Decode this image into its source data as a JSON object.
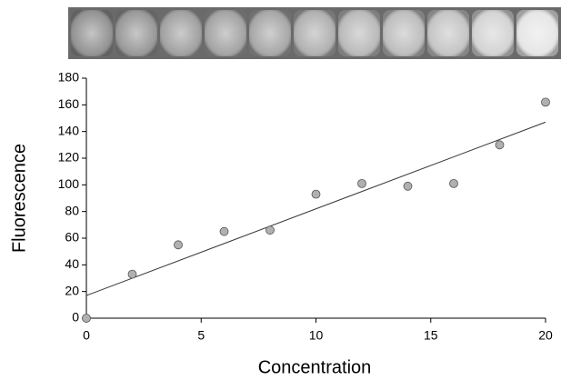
{
  "chart_data": {
    "type": "scatter",
    "x_label": "Concentration",
    "y_label": "Fluorescence",
    "x": [
      0,
      2,
      4,
      6,
      8,
      10,
      12,
      14,
      16,
      18,
      20
    ],
    "series": [
      {
        "color": "#b0b0b0",
        "values": [
          0,
          33,
          55,
          65,
          66,
          93,
          101,
          99,
          101,
          130,
          162
        ]
      }
    ],
    "trendline": {
      "x": [
        0,
        20
      ],
      "y": [
        17,
        147
      ],
      "color": "#333333"
    },
    "xlim": [
      0,
      20
    ],
    "xticks": [
      0,
      5,
      10,
      15,
      20
    ],
    "ylim": [
      0,
      180
    ],
    "yticks": [
      0,
      20,
      40,
      60,
      80,
      100,
      120,
      140,
      160,
      180
    ],
    "grid": false
  }
}
